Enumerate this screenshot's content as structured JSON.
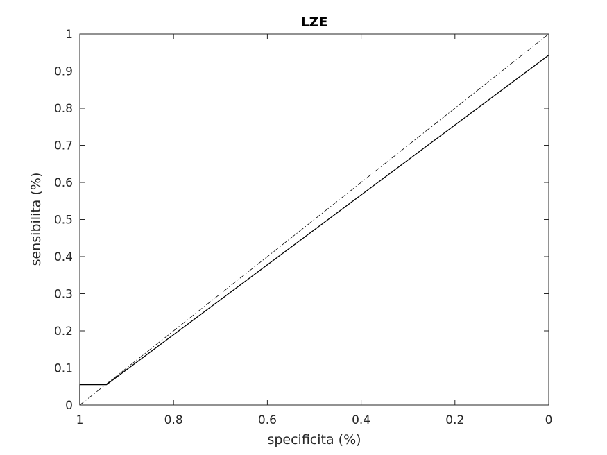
{
  "chart_data": {
    "type": "line",
    "title": "LZE",
    "xlabel": "specificita (%)",
    "ylabel": "sensibilita (%)",
    "xlim": [
      0,
      1
    ],
    "ylim": [
      0,
      1
    ],
    "x_reversed": true,
    "grid": false,
    "x_ticks": [
      1,
      0.8,
      0.6,
      0.4,
      0.2,
      0
    ],
    "x_tick_labels": [
      "1",
      "0.8",
      "0.6",
      "0.4",
      "0.2",
      "0"
    ],
    "y_ticks": [
      0,
      0.1,
      0.2,
      0.3,
      0.4,
      0.5,
      0.6,
      0.7,
      0.8,
      0.9,
      1
    ],
    "y_tick_labels": [
      "0",
      "0.1",
      "0.2",
      "0.3",
      "0.4",
      "0.5",
      "0.6",
      "0.7",
      "0.8",
      "0.9",
      "1"
    ],
    "series": [
      {
        "style": "solid",
        "color": "#000000",
        "points": [
          {
            "x": 1,
            "y": 0
          },
          {
            "x": 1,
            "y": 0.055
          },
          {
            "x": 0.943,
            "y": 0.055
          },
          {
            "x": 0,
            "y": 0.943
          }
        ]
      },
      {
        "style": "dashdot",
        "color": "#000000",
        "points": [
          {
            "x": 1,
            "y": 0
          },
          {
            "x": 0,
            "y": 1
          }
        ]
      }
    ]
  }
}
